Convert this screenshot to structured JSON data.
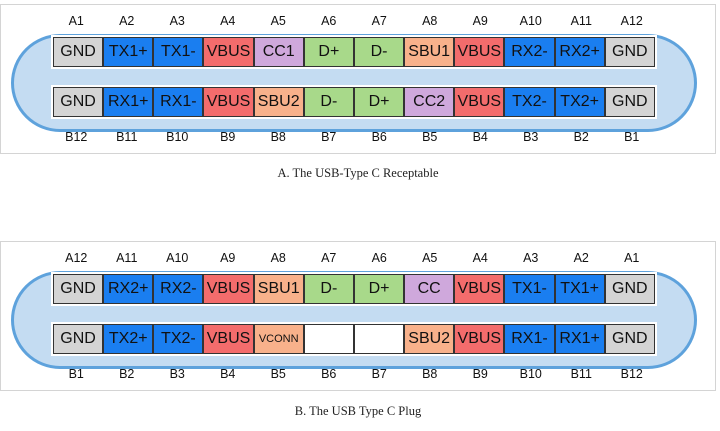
{
  "receptacle": {
    "caption": "A. The USB-Type C Receptable",
    "top_labels": [
      "A1",
      "A2",
      "A3",
      "A4",
      "A5",
      "A6",
      "A7",
      "A8",
      "A9",
      "A10",
      "A11",
      "A12"
    ],
    "top_pins": [
      "GND",
      "TX1+",
      "TX1-",
      "VBUS",
      "CC1",
      "D+",
      "D-",
      "SBU1",
      "VBUS",
      "RX2-",
      "RX2+",
      "GND"
    ],
    "bottom_pins": [
      "GND",
      "RX1+",
      "RX1-",
      "VBUS",
      "SBU2",
      "D-",
      "D+",
      "CC2",
      "VBUS",
      "TX2-",
      "TX2+",
      "GND"
    ],
    "bottom_labels": [
      "B12",
      "B11",
      "B10",
      "B9",
      "B8",
      "B7",
      "B6",
      "B5",
      "B4",
      "B3",
      "B2",
      "B1"
    ]
  },
  "plug": {
    "caption": "B. The USB Type C Plug",
    "top_labels": [
      "A12",
      "A11",
      "A10",
      "A9",
      "A8",
      "A7",
      "A6",
      "A5",
      "A4",
      "A3",
      "A2",
      "A1"
    ],
    "top_pins": [
      "GND",
      "RX2+",
      "RX2-",
      "VBUS",
      "SBU1",
      "D-",
      "D+",
      "CC",
      "VBUS",
      "TX1-",
      "TX1+",
      "GND"
    ],
    "bottom_pins": [
      "GND",
      "TX2+",
      "TX2-",
      "VBUS",
      "VCONN",
      "",
      "",
      "SBU2",
      "VBUS",
      "RX1-",
      "RX1+",
      "GND"
    ],
    "bottom_labels": [
      "B1",
      "B2",
      "B3",
      "B4",
      "B5",
      "B6",
      "B7",
      "B8",
      "B9",
      "B10",
      "B11",
      "B12"
    ]
  },
  "colors": {
    "GND": "#d4d4d4",
    "TX": "#1a7ef0",
    "RX": "#1a7ef0",
    "VBUS": "#f36c6c",
    "CC": "#cfa8dc",
    "SBU": "#f8b18b",
    "VCONN": "#f8b18b",
    "D": "#a8d98a",
    "EMPTY": "#ffffff"
  }
}
